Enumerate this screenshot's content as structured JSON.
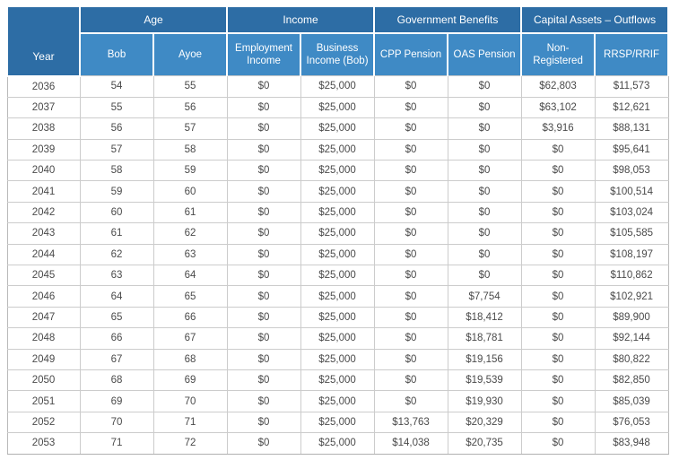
{
  "colors": {
    "header_dark": "#2d6da5",
    "header_light": "#3f8ac5",
    "body_text": "#4a4a4a",
    "grid_border": "#cccccc"
  },
  "table": {
    "column_groups": [
      {
        "label": "Age",
        "colspan": 2
      },
      {
        "label": "Income",
        "colspan": 2
      },
      {
        "label": "Government Benefits",
        "colspan": 2
      },
      {
        "label": "Capital Assets – Outflows",
        "colspan": 2
      }
    ],
    "columns": [
      "Year",
      "Bob",
      "Ayoe",
      "Employment Income",
      "Business Income (Bob)",
      "CPP Pension",
      "OAS Pension",
      "Non-Registered",
      "RRSP/RRIF"
    ],
    "rows": [
      [
        "2036",
        "54",
        "55",
        "$0",
        "$25,000",
        "$0",
        "$0",
        "$62,803",
        "$11,573"
      ],
      [
        "2037",
        "55",
        "56",
        "$0",
        "$25,000",
        "$0",
        "$0",
        "$63,102",
        "$12,621"
      ],
      [
        "2038",
        "56",
        "57",
        "$0",
        "$25,000",
        "$0",
        "$0",
        "$3,916",
        "$88,131"
      ],
      [
        "2039",
        "57",
        "58",
        "$0",
        "$25,000",
        "$0",
        "$0",
        "$0",
        "$95,641"
      ],
      [
        "2040",
        "58",
        "59",
        "$0",
        "$25,000",
        "$0",
        "$0",
        "$0",
        "$98,053"
      ],
      [
        "2041",
        "59",
        "60",
        "$0",
        "$25,000",
        "$0",
        "$0",
        "$0",
        "$100,514"
      ],
      [
        "2042",
        "60",
        "61",
        "$0",
        "$25,000",
        "$0",
        "$0",
        "$0",
        "$103,024"
      ],
      [
        "2043",
        "61",
        "62",
        "$0",
        "$25,000",
        "$0",
        "$0",
        "$0",
        "$105,585"
      ],
      [
        "2044",
        "62",
        "63",
        "$0",
        "$25,000",
        "$0",
        "$0",
        "$0",
        "$108,197"
      ],
      [
        "2045",
        "63",
        "64",
        "$0",
        "$25,000",
        "$0",
        "$0",
        "$0",
        "$110,862"
      ],
      [
        "2046",
        "64",
        "65",
        "$0",
        "$25,000",
        "$0",
        "$7,754",
        "$0",
        "$102,921"
      ],
      [
        "2047",
        "65",
        "66",
        "$0",
        "$25,000",
        "$0",
        "$18,412",
        "$0",
        "$89,900"
      ],
      [
        "2048",
        "66",
        "67",
        "$0",
        "$25,000",
        "$0",
        "$18,781",
        "$0",
        "$92,144"
      ],
      [
        "2049",
        "67",
        "68",
        "$0",
        "$25,000",
        "$0",
        "$19,156",
        "$0",
        "$80,822"
      ],
      [
        "2050",
        "68",
        "69",
        "$0",
        "$25,000",
        "$0",
        "$19,539",
        "$0",
        "$82,850"
      ],
      [
        "2051",
        "69",
        "70",
        "$0",
        "$25,000",
        "$0",
        "$19,930",
        "$0",
        "$85,039"
      ],
      [
        "2052",
        "70",
        "71",
        "$0",
        "$25,000",
        "$13,763",
        "$20,329",
        "$0",
        "$76,053"
      ],
      [
        "2053",
        "71",
        "72",
        "$0",
        "$25,000",
        "$14,038",
        "$20,735",
        "$0",
        "$83,948"
      ]
    ]
  }
}
